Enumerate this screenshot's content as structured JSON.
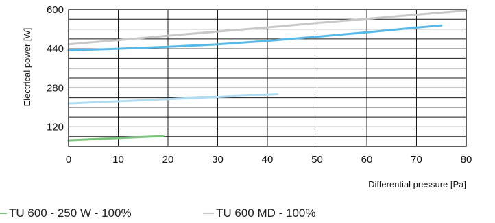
{
  "chart_data": {
    "type": "line",
    "xlabel": "Differential pressure [Pa]",
    "ylabel": "Electrical power [W]",
    "xlim": [
      0,
      80
    ],
    "ylim": [
      40,
      600
    ],
    "x_ticks": [
      "0",
      "10",
      "20",
      "30",
      "40",
      "50",
      "60",
      "70",
      "80"
    ],
    "y_ticks": [
      "120",
      "280",
      "440",
      "600"
    ],
    "grid": "on",
    "series": [
      {
        "name": "TU 600 MD - 100%",
        "color": "#c8c8c8",
        "points": [
          [
            0,
            458
          ],
          [
            10,
            475
          ],
          [
            20,
            493
          ],
          [
            30,
            510
          ],
          [
            40,
            527
          ],
          [
            50,
            545
          ],
          [
            60,
            562
          ],
          [
            70,
            579
          ],
          [
            80,
            596
          ]
        ]
      },
      {
        "color": "#58b8e8",
        "points": [
          [
            0,
            433
          ],
          [
            10,
            440
          ],
          [
            20,
            448
          ],
          [
            30,
            458
          ],
          [
            40,
            472
          ],
          [
            50,
            489
          ],
          [
            60,
            507
          ],
          [
            70,
            526
          ],
          [
            75,
            535
          ]
        ]
      },
      {
        "color": "#b0dcf2",
        "points": [
          [
            0,
            216
          ],
          [
            10,
            225
          ],
          [
            20,
            234
          ],
          [
            30,
            243
          ],
          [
            40,
            252
          ],
          [
            42,
            254
          ]
        ]
      },
      {
        "name": "TU 600 - 250 W - 100%",
        "color": "#7cc47c",
        "points": [
          [
            0,
            65
          ],
          [
            10,
            74
          ],
          [
            19,
            82
          ]
        ]
      }
    ]
  },
  "legend": [
    {
      "label": "TU 600 - 250 W - 100%",
      "color": "#7cc47c"
    },
    {
      "label": "TU 600 MD - 100%",
      "color": "#c8c8c8"
    }
  ]
}
